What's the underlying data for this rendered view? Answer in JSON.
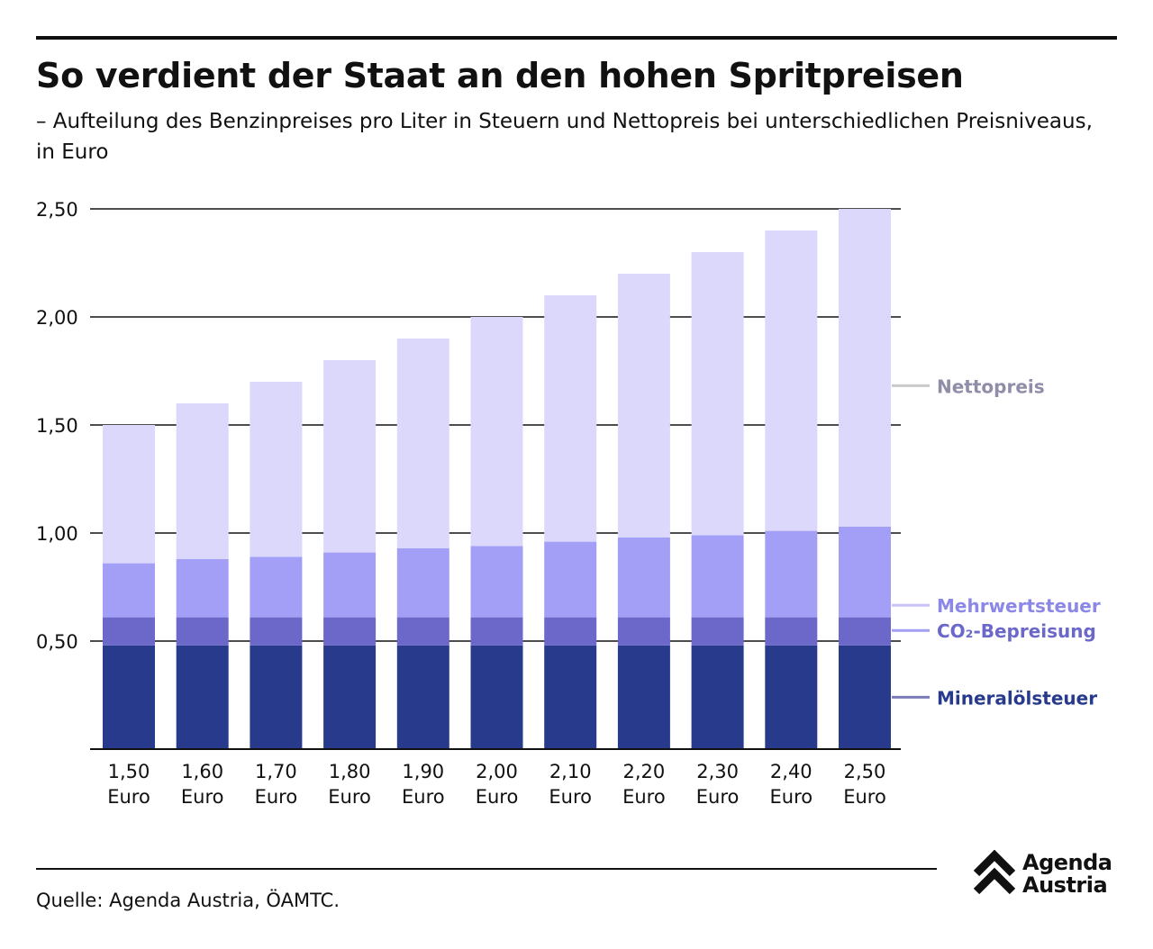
{
  "header": {
    "title": "So verdient der Staat an den hohen Spritpreisen",
    "subtitle": "– Aufteilung des Benzinpreises pro Liter in Steuern und Nettopreis bei unterschiedlichen Preisniveaus, in Euro"
  },
  "footer": {
    "source": "Quelle: Agenda Austria, ÖAMTC.",
    "logo_line1": "Agenda",
    "logo_line2": "Austria"
  },
  "chart_data": {
    "type": "bar",
    "stacked": true,
    "categories": [
      "1,50 Euro",
      "1,60 Euro",
      "1,70 Euro",
      "1,80 Euro",
      "1,90 Euro",
      "2,00 Euro",
      "2,10 Euro",
      "2,20 Euro",
      "2,30 Euro",
      "2,40 Euro",
      "2,50 Euro"
    ],
    "series": [
      {
        "name": "Mineralölsteuer",
        "color": "#273a8c",
        "values": [
          0.48,
          0.48,
          0.48,
          0.48,
          0.48,
          0.48,
          0.48,
          0.48,
          0.48,
          0.48,
          0.48
        ]
      },
      {
        "name": "CO₂-Bepreisung",
        "color": "#6b68c9",
        "values": [
          0.13,
          0.13,
          0.13,
          0.13,
          0.13,
          0.13,
          0.13,
          0.13,
          0.13,
          0.13,
          0.13
        ]
      },
      {
        "name": "Mehrwertsteuer",
        "color": "#a39ff7",
        "values": [
          0.25,
          0.27,
          0.28,
          0.3,
          0.32,
          0.33,
          0.35,
          0.37,
          0.38,
          0.4,
          0.42
        ]
      },
      {
        "name": "Nettopreis",
        "color": "#dcd8fc",
        "values": [
          0.64,
          0.72,
          0.81,
          0.89,
          0.97,
          1.06,
          1.14,
          1.22,
          1.31,
          1.39,
          1.47
        ]
      }
    ],
    "yticks": [
      "2,50",
      "2,00",
      "1,50",
      "1,00",
      "0,50"
    ],
    "ytick_values": [
      2.5,
      2.0,
      1.5,
      1.0,
      0.5
    ],
    "ylim": [
      0,
      2.5
    ],
    "legend_placement": "right, labels aligned to series",
    "label_colors": {
      "Nettopreis": "#8f8da8",
      "Mehrwertsteuer": "#8c88e8",
      "CO₂-Bepreisung": "#6b68c9",
      "Mineralölsteuer": "#273a8c"
    },
    "label_line_colors": {
      "Nettopreis": "#c9c9c9",
      "Mehrwertsteuer": "#c8c4fa",
      "CO₂-Bepreisung": "#a39ff7",
      "Mineralölsteuer": "#7d7bb8"
    },
    "grid": true
  }
}
